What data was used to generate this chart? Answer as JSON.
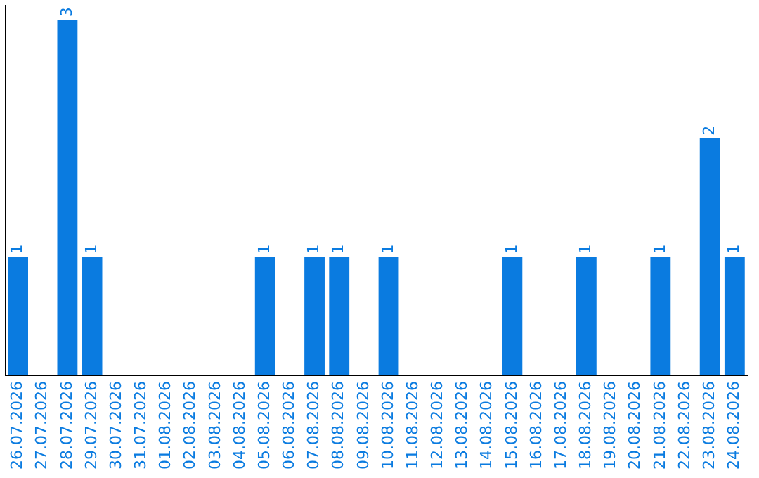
{
  "chart_data": {
    "type": "bar",
    "categories": [
      "26.07.2026",
      "27.07.2026",
      "28.07.2026",
      "29.07.2026",
      "30.07.2026",
      "31.07.2026",
      "01.08.2026",
      "02.08.2026",
      "03.08.2026",
      "04.08.2026",
      "05.08.2026",
      "06.08.2026",
      "07.08.2026",
      "08.08.2026",
      "09.08.2026",
      "10.08.2026",
      "11.08.2026",
      "12.08.2026",
      "13.08.2026",
      "14.08.2026",
      "15.08.2026",
      "16.08.2026",
      "17.08.2026",
      "18.08.2026",
      "19.08.2026",
      "20.08.2026",
      "21.08.2026",
      "22.08.2026",
      "23.08.2026",
      "24.08.2026"
    ],
    "values": [
      1,
      0,
      3,
      1,
      0,
      0,
      0,
      0,
      0,
      0,
      1,
      0,
      1,
      1,
      0,
      1,
      0,
      0,
      0,
      0,
      1,
      0,
      0,
      1,
      0,
      0,
      1,
      0,
      2,
      1
    ],
    "value_labels": [
      "1",
      null,
      "3",
      "1",
      null,
      null,
      null,
      null,
      null,
      null,
      "1",
      null,
      "1",
      "1",
      null,
      "1",
      null,
      null,
      null,
      null,
      "1",
      null,
      null,
      "1",
      null,
      null,
      "1",
      null,
      "2",
      "1"
    ],
    "color": "#0a7be0",
    "grid": false,
    "legend": false,
    "tick_labels": "x"
  }
}
